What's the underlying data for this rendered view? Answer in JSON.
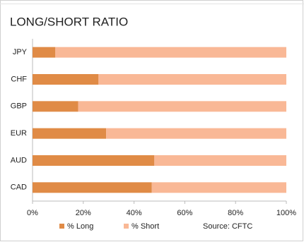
{
  "chart_data": {
    "type": "bar",
    "orientation": "horizontal",
    "title": "LONG/SHORT RATIO",
    "categories": [
      "JPY",
      "CHF",
      "GBP",
      "EUR",
      "AUD",
      "CAD"
    ],
    "series": [
      {
        "name": "% Long",
        "color": "#e08b46",
        "values": [
          9,
          26,
          18,
          29,
          48,
          47
        ]
      },
      {
        "name": "% Short",
        "color": "#f9b896",
        "values": [
          91,
          74,
          82,
          71,
          52,
          53
        ]
      }
    ],
    "xlim": [
      0,
      100
    ],
    "xticks": [
      {
        "value": 0,
        "label": "0%"
      },
      {
        "value": 20,
        "label": "20%"
      },
      {
        "value": 40,
        "label": "40%"
      },
      {
        "value": 60,
        "label": "60%"
      },
      {
        "value": 80,
        "label": "80%"
      },
      {
        "value": 100,
        "label": "100%"
      }
    ],
    "annotation": "Source: CFTC",
    "legend": "bottom"
  }
}
